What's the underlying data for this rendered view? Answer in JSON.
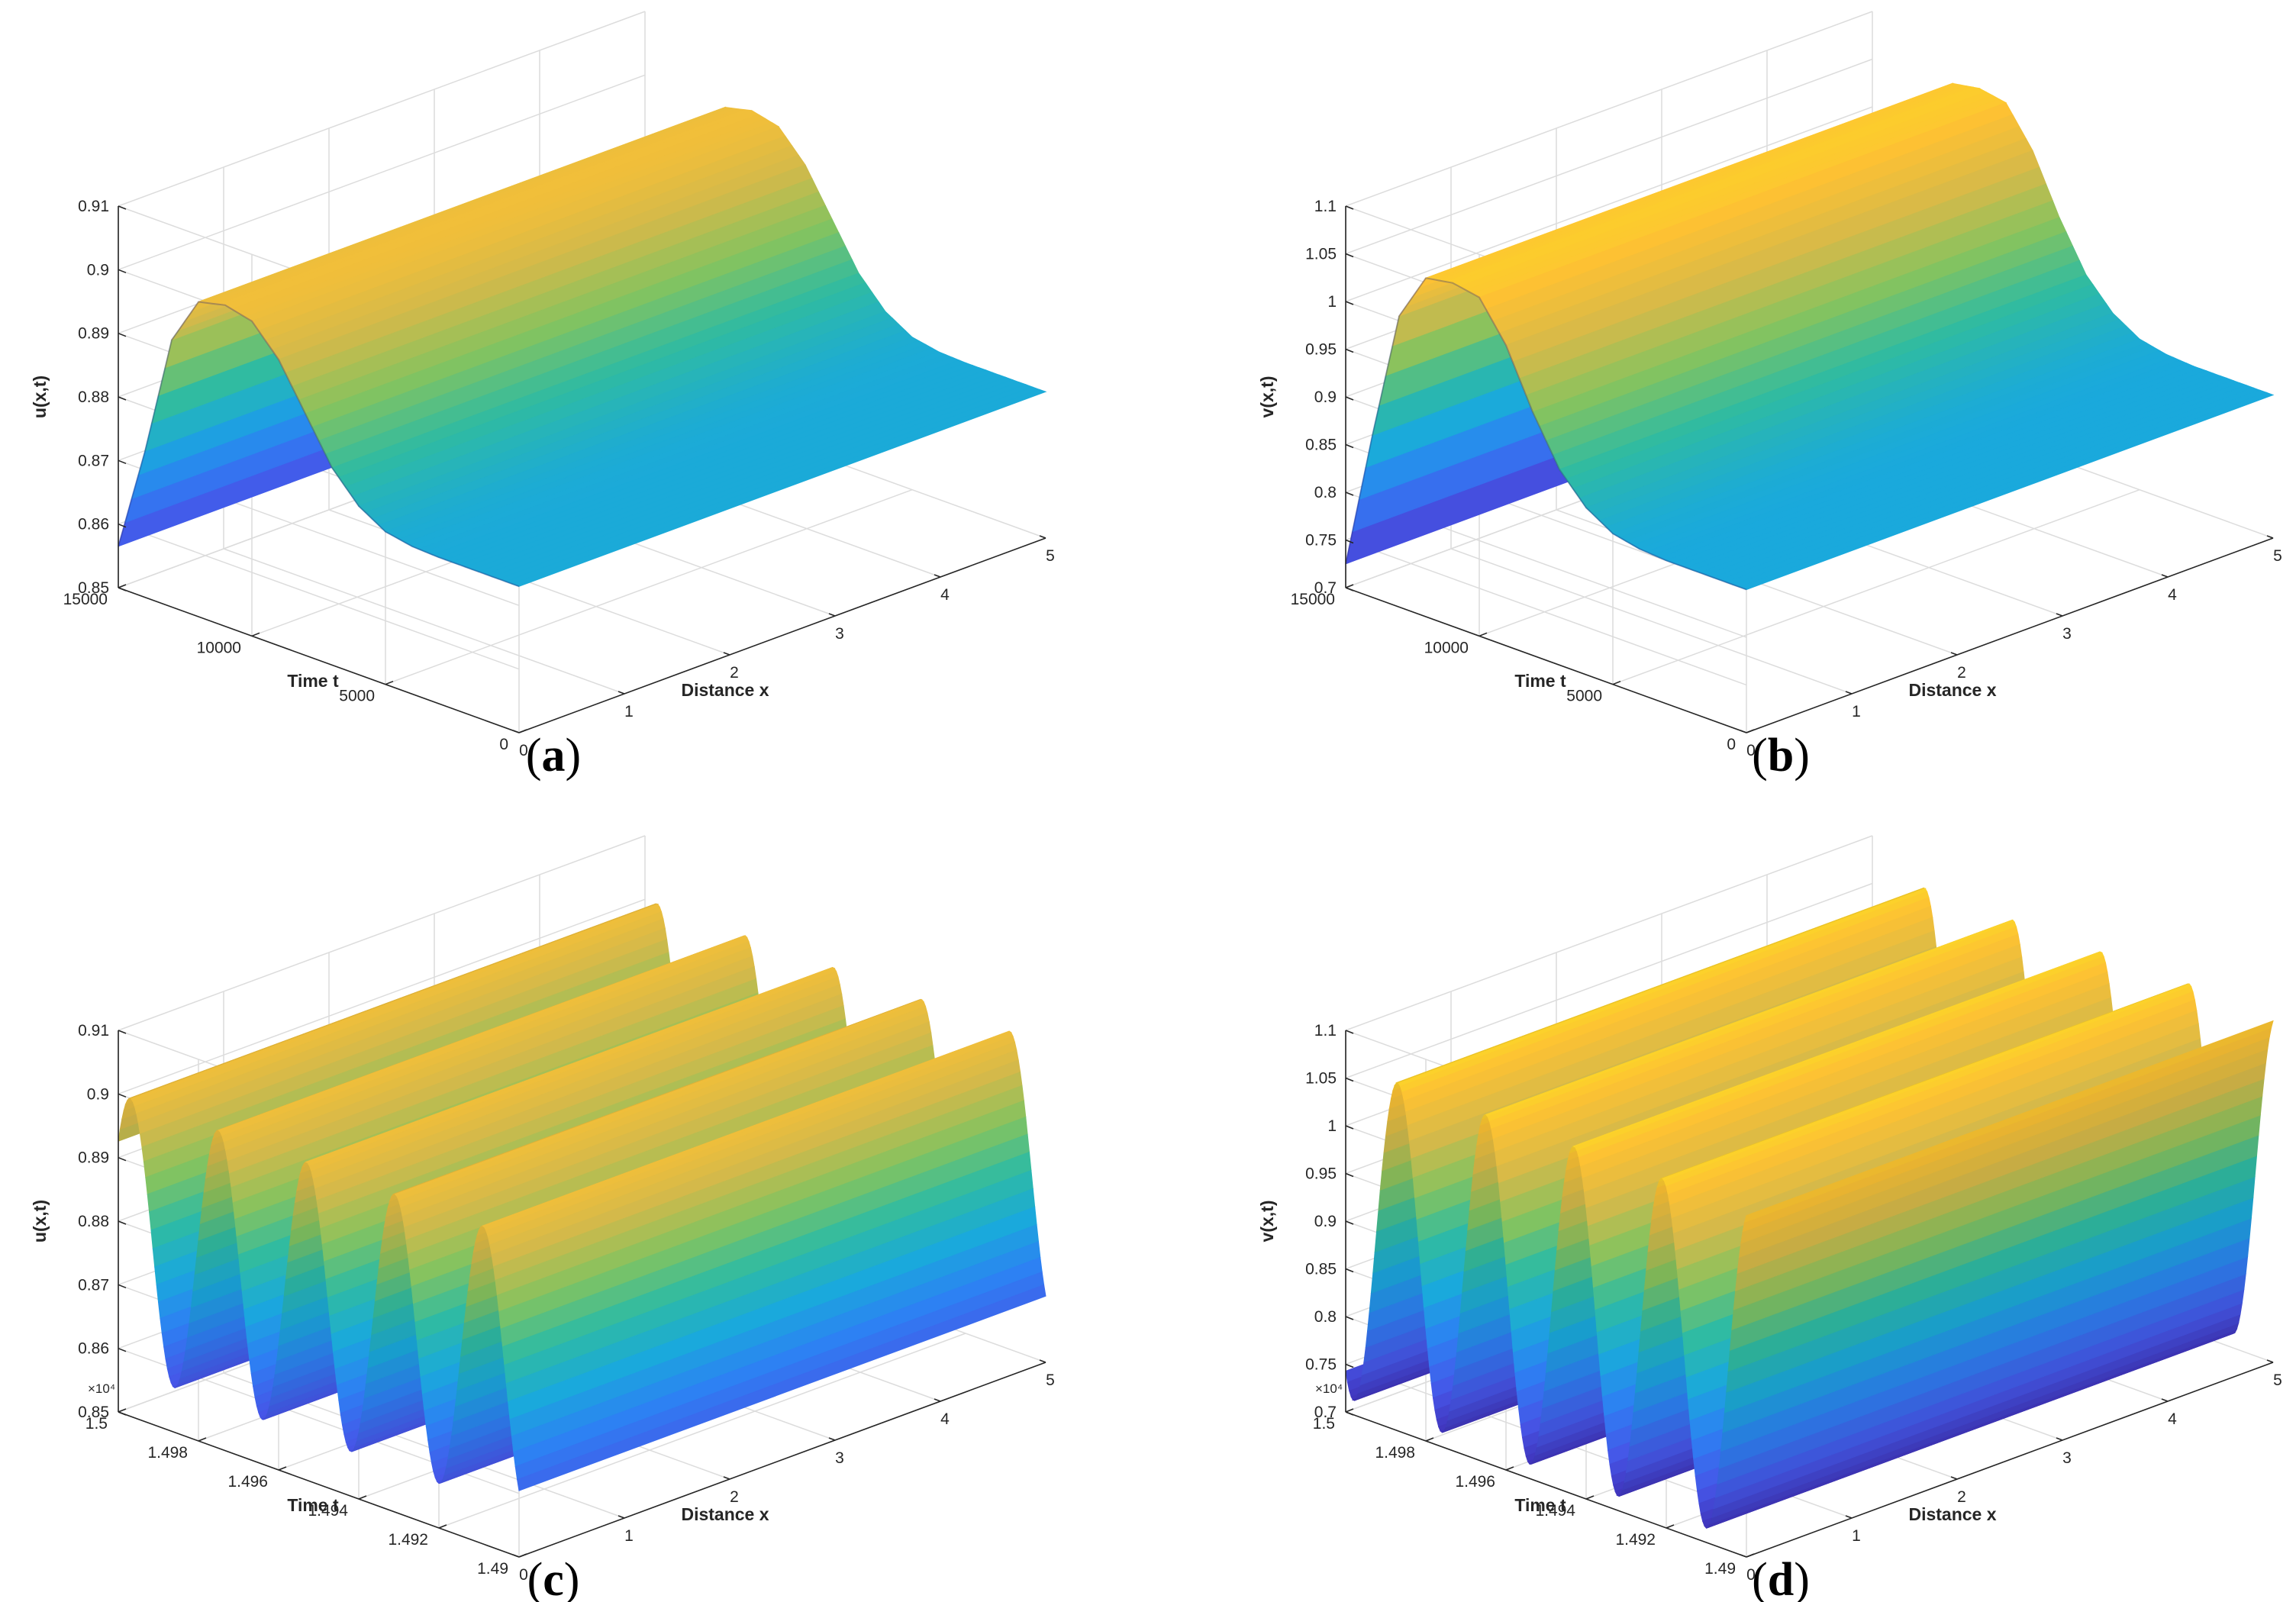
{
  "figure": {
    "colormap": [
      "#3e26a8",
      "#4656e8",
      "#2d80f3",
      "#1aa9dc",
      "#2fbba2",
      "#84c35f",
      "#d4b94a",
      "#fdc133",
      "#f9fb15"
    ],
    "grid_color": "#dcdcdc",
    "axis_color": "#262626"
  },
  "chart_data": [
    {
      "panel": "a",
      "type": "surface",
      "caption": "a",
      "zlabel": "u(x,t)",
      "xlabel": "Distance x",
      "ylabel": "Time t",
      "xlim": [
        0,
        5
      ],
      "ylim": [
        0,
        15000
      ],
      "zlim": [
        0.85,
        0.91
      ],
      "x_ticks": [
        "0",
        "1",
        "2",
        "3",
        "4",
        "5"
      ],
      "y_ticks": [
        "0",
        "5000",
        "10000",
        "15000"
      ],
      "y_tick_values": [
        0,
        5000,
        10000,
        15000
      ],
      "z_ticks": [
        "0.85",
        "0.86",
        "0.87",
        "0.88",
        "0.89",
        "0.9",
        "0.91"
      ],
      "z_tick_values": [
        0.85,
        0.86,
        0.87,
        0.88,
        0.89,
        0.9,
        0.91
      ],
      "y_exponent": "",
      "profile_t": [
        0,
        1000,
        2000,
        3000,
        4000,
        5000,
        6000,
        7000,
        8000,
        9000,
        10000,
        11000,
        12000,
        13000,
        14000,
        15000
      ],
      "profile_u": [
        0.873,
        0.873,
        0.873,
        0.873,
        0.8732,
        0.874,
        0.8765,
        0.881,
        0.888,
        0.895,
        0.8995,
        0.9005,
        0.8995,
        0.892,
        0.873,
        0.8565
      ]
    },
    {
      "panel": "b",
      "type": "surface",
      "caption": "b",
      "zlabel": "v(x,t)",
      "xlabel": "Distance x",
      "ylabel": "Time t",
      "xlim": [
        0,
        5
      ],
      "ylim": [
        0,
        15000
      ],
      "zlim": [
        0.7,
        1.1
      ],
      "x_ticks": [
        "0",
        "1",
        "2",
        "3",
        "4",
        "5"
      ],
      "y_ticks": [
        "0",
        "5000",
        "10000",
        "15000"
      ],
      "y_tick_values": [
        0,
        5000,
        10000,
        15000
      ],
      "z_ticks": [
        "0.7",
        "0.75",
        "0.8",
        "0.85",
        "0.9",
        "0.95",
        "1",
        "1.05",
        "1.1"
      ],
      "z_tick_values": [
        0.7,
        0.75,
        0.8,
        0.85,
        0.9,
        0.95,
        1.0,
        1.05,
        1.1
      ],
      "y_exponent": "",
      "profile_t": [
        0,
        1000,
        2000,
        3000,
        4000,
        5000,
        6000,
        7000,
        8000,
        9000,
        10000,
        11000,
        12000,
        13000,
        14000,
        15000
      ],
      "profile_u": [
        0.85,
        0.85,
        0.85,
        0.85,
        0.852,
        0.858,
        0.875,
        0.905,
        0.955,
        1.015,
        1.055,
        1.06,
        1.055,
        1.005,
        0.87,
        0.725
      ]
    },
    {
      "panel": "c",
      "type": "surface",
      "caption": "c",
      "zlabel": "u(x,t)",
      "xlabel": "Distance x",
      "ylabel": "Time t",
      "xlim": [
        0,
        5
      ],
      "ylim": [
        14900,
        15000
      ],
      "zlim": [
        0.85,
        0.91
      ],
      "x_ticks": [
        "0",
        "1",
        "2",
        "3",
        "4",
        "5"
      ],
      "y_ticks": [
        "1.49",
        "1.492",
        "1.494",
        "1.496",
        "1.498",
        "1.5"
      ],
      "y_tick_values": [
        14900,
        14920,
        14940,
        14960,
        14980,
        15000
      ],
      "z_ticks": [
        "0.85",
        "0.86",
        "0.87",
        "0.88",
        "0.89",
        "0.9",
        "0.91"
      ],
      "z_tick_values": [
        0.85,
        0.86,
        0.87,
        0.88,
        0.89,
        0.9,
        0.91
      ],
      "y_exponent": "×10⁴",
      "oscillation": {
        "min": 0.857,
        "max": 0.9,
        "period": 22,
        "phase": 14920
      }
    },
    {
      "panel": "d",
      "type": "surface",
      "caption": "d",
      "zlabel": "v(x,t)",
      "xlabel": "Distance x",
      "ylabel": "Time t",
      "xlim": [
        0,
        5
      ],
      "ylim": [
        14900,
        15000
      ],
      "zlim": [
        0.7,
        1.1
      ],
      "x_ticks": [
        "0",
        "1",
        "2",
        "3",
        "4",
        "5"
      ],
      "y_ticks": [
        "1.49",
        "1.492",
        "1.494",
        "1.496",
        "1.498",
        "1.5"
      ],
      "y_tick_values": [
        14900,
        14920,
        14940,
        14960,
        14980,
        15000
      ],
      "z_ticks": [
        "0.7",
        "0.75",
        "0.8",
        "0.85",
        "0.9",
        "0.95",
        "1",
        "1.05",
        "1.1"
      ],
      "z_tick_values": [
        0.7,
        0.75,
        0.8,
        0.85,
        0.9,
        0.95,
        1.0,
        1.05,
        1.1
      ],
      "y_exponent": "×10⁴",
      "oscillation": {
        "min": 0.715,
        "max": 1.065,
        "period": 22,
        "phase": 14910
      }
    }
  ]
}
